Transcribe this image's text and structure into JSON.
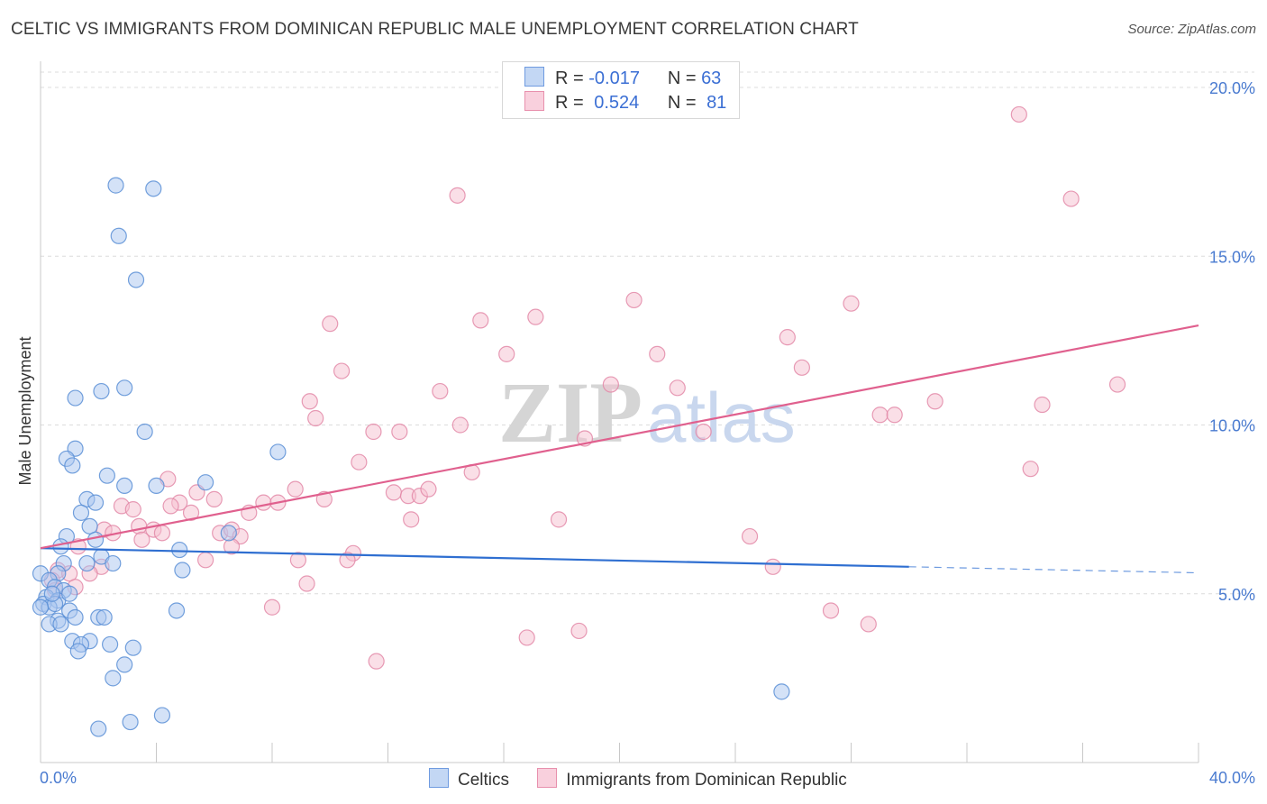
{
  "header": {
    "title": "CELTIC VS IMMIGRANTS FROM DOMINICAN REPUBLIC MALE UNEMPLOYMENT CORRELATION CHART",
    "source": "Source: ZipAtlas.com"
  },
  "watermark": {
    "part1": "ZIP",
    "part2": "atlas"
  },
  "legend": {
    "rows": [
      {
        "r_label": "R =",
        "r_value": "-0.017",
        "n_label": "N =",
        "n_value": "63"
      },
      {
        "r_label": "R =",
        "r_value": "0.524",
        "n_label": "N =",
        "n_value": "81"
      }
    ]
  },
  "bottom_legend": {
    "series1": "Celtics",
    "series2": "Immigrants from Dominican Republic"
  },
  "colors": {
    "blue_fill": "#a9c6ef",
    "blue_stroke": "#5b8fd6",
    "blue_line": "#2f6fd1",
    "pink_fill": "#f6bfd0",
    "pink_stroke": "#e38aa8",
    "pink_line": "#e0608e",
    "grid": "#dcdcdc",
    "tick_text": "#4a7bd0"
  },
  "chart_data": {
    "type": "scatter",
    "title": "CELTIC VS IMMIGRANTS FROM DOMINICAN REPUBLIC MALE UNEMPLOYMENT CORRELATION CHART",
    "xlabel": "",
    "ylabel": "Male Unemployment",
    "xlim": [
      0,
      40
    ],
    "ylim": [
      0,
      20
    ],
    "x_tick_labels": [
      "0.0%",
      "40.0%"
    ],
    "y_ticks": [
      5,
      10,
      15,
      20
    ],
    "y_tick_labels": [
      "5.0%",
      "10.0%",
      "15.0%",
      "20.0%"
    ],
    "grid": true,
    "series": [
      {
        "name": "Celtics",
        "R": -0.017,
        "N": 63,
        "trend": {
          "x0": 0,
          "y0": 6.35,
          "x1": 30,
          "y1": 5.8,
          "dash_to_x": 40,
          "dash_to_y": 5.62
        },
        "points": [
          [
            2.6,
            17.1
          ],
          [
            3.9,
            17.0
          ],
          [
            2.7,
            15.6
          ],
          [
            3.3,
            14.3
          ],
          [
            1.2,
            10.8
          ],
          [
            2.1,
            11.0
          ],
          [
            2.9,
            11.1
          ],
          [
            3.6,
            9.8
          ],
          [
            1.2,
            9.3
          ],
          [
            0.9,
            9.0
          ],
          [
            1.1,
            8.8
          ],
          [
            2.3,
            8.5
          ],
          [
            2.9,
            8.2
          ],
          [
            4.0,
            8.2
          ],
          [
            5.7,
            8.3
          ],
          [
            8.2,
            9.2
          ],
          [
            1.6,
            7.8
          ],
          [
            1.9,
            7.7
          ],
          [
            1.4,
            7.4
          ],
          [
            1.7,
            7.0
          ],
          [
            0.9,
            6.7
          ],
          [
            1.9,
            6.6
          ],
          [
            0.7,
            6.4
          ],
          [
            4.8,
            6.3
          ],
          [
            2.1,
            6.1
          ],
          [
            1.6,
            5.9
          ],
          [
            2.5,
            5.9
          ],
          [
            0.8,
            5.9
          ],
          [
            0.6,
            5.6
          ],
          [
            4.9,
            5.7
          ],
          [
            0.0,
            5.6
          ],
          [
            0.3,
            5.4
          ],
          [
            0.5,
            5.2
          ],
          [
            0.8,
            5.1
          ],
          [
            0.2,
            4.9
          ],
          [
            0.6,
            4.8
          ],
          [
            0.1,
            4.7
          ],
          [
            0.3,
            4.6
          ],
          [
            0.5,
            4.7
          ],
          [
            0.0,
            4.6
          ],
          [
            1.0,
            4.5
          ],
          [
            4.7,
            4.5
          ],
          [
            1.2,
            4.3
          ],
          [
            2.0,
            4.3
          ],
          [
            2.2,
            4.3
          ],
          [
            0.6,
            4.2
          ],
          [
            0.3,
            4.1
          ],
          [
            0.7,
            4.1
          ],
          [
            1.1,
            3.6
          ],
          [
            1.7,
            3.6
          ],
          [
            2.4,
            3.5
          ],
          [
            1.4,
            3.5
          ],
          [
            3.2,
            3.4
          ],
          [
            1.3,
            3.3
          ],
          [
            2.9,
            2.9
          ],
          [
            2.5,
            2.5
          ],
          [
            25.6,
            2.1
          ],
          [
            4.2,
            1.4
          ],
          [
            3.1,
            1.2
          ],
          [
            2.0,
            1.0
          ],
          [
            6.5,
            6.8
          ],
          [
            0.4,
            5.0
          ],
          [
            1.0,
            5.0
          ]
        ]
      },
      {
        "name": "Immigrants from Dominican Republic",
        "R": 0.524,
        "N": 81,
        "trend": {
          "x0": 0,
          "y0": 6.35,
          "x1": 40,
          "y1": 12.95
        },
        "points": [
          [
            33.8,
            19.2
          ],
          [
            14.4,
            16.8
          ],
          [
            35.6,
            16.7
          ],
          [
            20.5,
            13.7
          ],
          [
            28.0,
            13.6
          ],
          [
            10.0,
            13.0
          ],
          [
            15.2,
            13.1
          ],
          [
            17.1,
            13.2
          ],
          [
            25.8,
            12.6
          ],
          [
            16.1,
            12.1
          ],
          [
            21.3,
            12.1
          ],
          [
            10.4,
            11.6
          ],
          [
            26.3,
            11.7
          ],
          [
            19.7,
            11.2
          ],
          [
            13.8,
            11.0
          ],
          [
            22.0,
            11.1
          ],
          [
            37.2,
            11.2
          ],
          [
            9.3,
            10.7
          ],
          [
            30.9,
            10.7
          ],
          [
            34.6,
            10.6
          ],
          [
            9.5,
            10.2
          ],
          [
            29.0,
            10.3
          ],
          [
            29.5,
            10.3
          ],
          [
            14.5,
            10.0
          ],
          [
            11.5,
            9.8
          ],
          [
            12.4,
            9.8
          ],
          [
            22.9,
            9.8
          ],
          [
            18.8,
            9.6
          ],
          [
            11.0,
            8.9
          ],
          [
            14.9,
            8.6
          ],
          [
            34.2,
            8.7
          ],
          [
            4.4,
            8.4
          ],
          [
            8.8,
            8.1
          ],
          [
            9.8,
            7.8
          ],
          [
            12.2,
            8.0
          ],
          [
            12.7,
            7.9
          ],
          [
            13.1,
            7.9
          ],
          [
            13.4,
            8.1
          ],
          [
            5.4,
            8.0
          ],
          [
            4.8,
            7.7
          ],
          [
            6.0,
            7.8
          ],
          [
            7.7,
            7.7
          ],
          [
            8.2,
            7.7
          ],
          [
            7.2,
            7.4
          ],
          [
            2.8,
            7.6
          ],
          [
            3.2,
            7.5
          ],
          [
            4.5,
            7.6
          ],
          [
            5.2,
            7.4
          ],
          [
            3.4,
            7.0
          ],
          [
            3.9,
            6.9
          ],
          [
            2.2,
            6.9
          ],
          [
            2.5,
            6.8
          ],
          [
            4.2,
            6.8
          ],
          [
            6.2,
            6.8
          ],
          [
            6.6,
            6.9
          ],
          [
            6.9,
            6.7
          ],
          [
            12.8,
            7.2
          ],
          [
            17.9,
            7.2
          ],
          [
            24.5,
            6.7
          ],
          [
            3.5,
            6.6
          ],
          [
            1.3,
            6.4
          ],
          [
            6.6,
            6.4
          ],
          [
            10.8,
            6.2
          ],
          [
            10.6,
            6.0
          ],
          [
            5.7,
            6.0
          ],
          [
            2.1,
            5.8
          ],
          [
            0.6,
            5.7
          ],
          [
            1.0,
            5.6
          ],
          [
            1.7,
            5.6
          ],
          [
            0.4,
            5.4
          ],
          [
            8.9,
            6.0
          ],
          [
            25.3,
            5.8
          ],
          [
            1.2,
            5.2
          ],
          [
            9.2,
            5.3
          ],
          [
            8.0,
            4.6
          ],
          [
            27.3,
            4.5
          ],
          [
            28.6,
            4.1
          ],
          [
            18.6,
            3.9
          ],
          [
            16.8,
            3.7
          ],
          [
            11.6,
            3.0
          ],
          [
            0.5,
            5.1
          ]
        ]
      }
    ]
  }
}
